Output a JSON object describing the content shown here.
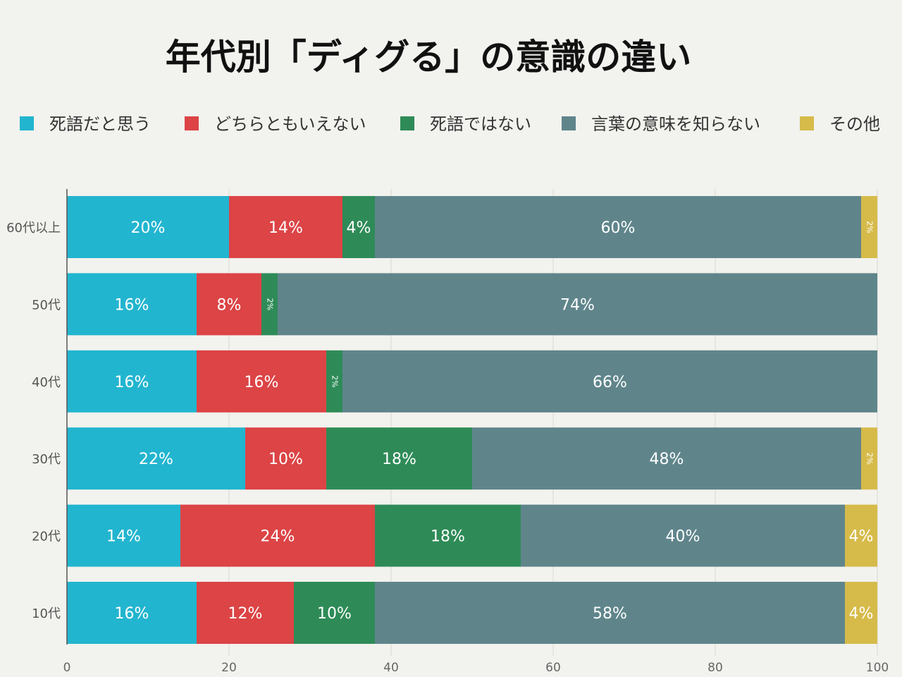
{
  "chart_data": {
    "type": "bar",
    "orientation": "horizontal",
    "stacked": true,
    "title": "年代別「ディグる」の意識の違い",
    "categories": [
      "60代以上",
      "50代",
      "40代",
      "30代",
      "20代",
      "10代"
    ],
    "series": [
      {
        "name": "死語だと思う",
        "color": "#22b5cf",
        "values": [
          20,
          16,
          16,
          22,
          14,
          16
        ]
      },
      {
        "name": "どちらともいえない",
        "color": "#dc4446",
        "values": [
          14,
          8,
          16,
          10,
          24,
          12
        ]
      },
      {
        "name": "死語ではない",
        "color": "#2e8b57",
        "values": [
          4,
          2,
          2,
          18,
          18,
          10
        ]
      },
      {
        "name": "言葉の意味を知らない",
        "color": "#5f858b",
        "values": [
          60,
          74,
          66,
          48,
          40,
          58
        ]
      },
      {
        "name": "その他",
        "color": "#d6bb4a",
        "values": [
          2,
          0,
          0,
          2,
          4,
          4
        ]
      }
    ],
    "xlim": [
      0,
      100
    ],
    "xticks": [
      "0",
      "20",
      "40",
      "60",
      "80",
      "100"
    ],
    "value_suffix": "%",
    "grid": "vertical",
    "legend_position": "top"
  }
}
